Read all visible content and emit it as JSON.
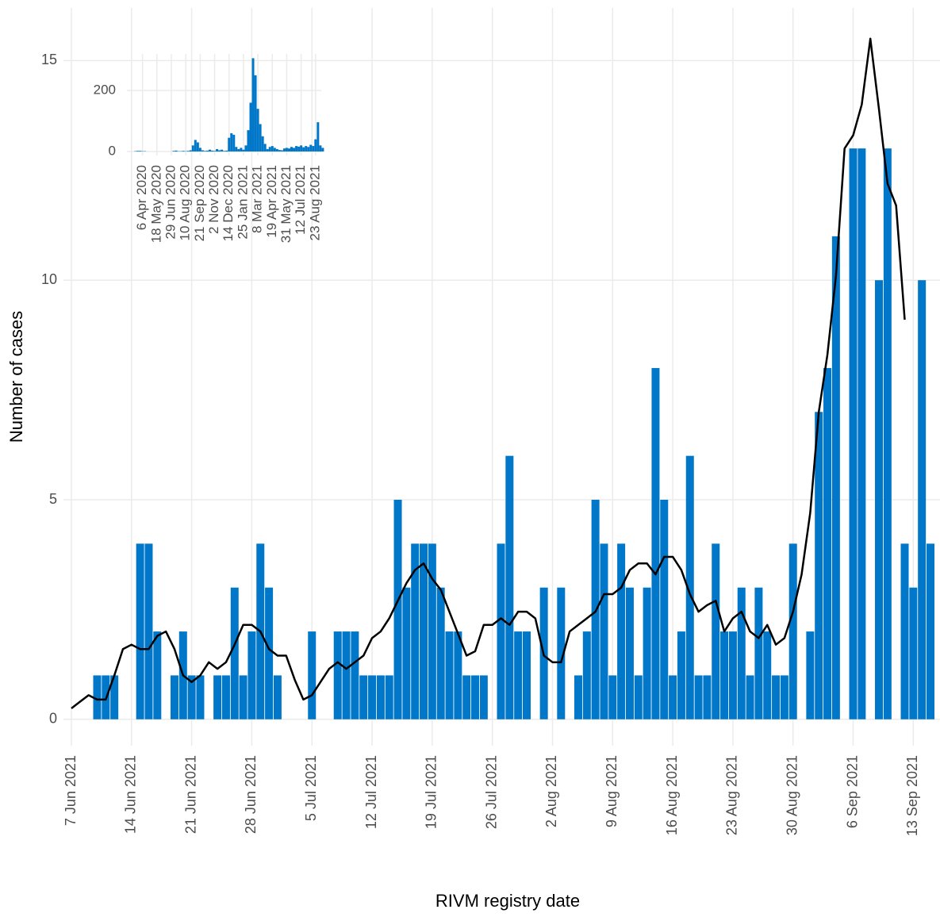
{
  "chart_data": [
    {
      "type": "bar",
      "x_label": "RIVM registry date",
      "y_label": "Number of cases",
      "categories": [
        "7 Jun 2021",
        null,
        null,
        null,
        null,
        null,
        null,
        "14 Jun 2021",
        null,
        null,
        null,
        null,
        null,
        null,
        "21 Jun 2021",
        null,
        null,
        null,
        null,
        null,
        null,
        "28 Jun 2021",
        null,
        null,
        null,
        null,
        null,
        null,
        "5 Jul 2021",
        null,
        null,
        null,
        null,
        null,
        null,
        "12 Jul 2021",
        null,
        null,
        null,
        null,
        null,
        null,
        "19 Jul 2021",
        null,
        null,
        null,
        null,
        null,
        null,
        "26 Jul 2021",
        null,
        null,
        null,
        null,
        null,
        null,
        "2 Aug 2021",
        null,
        null,
        null,
        null,
        null,
        null,
        "9 Aug 2021",
        null,
        null,
        null,
        null,
        null,
        null,
        "16 Aug 2021",
        null,
        null,
        null,
        null,
        null,
        null,
        "23 Aug 2021",
        null,
        null,
        null,
        null,
        null,
        null,
        "30 Aug 2021",
        null,
        null,
        null,
        null,
        null,
        null,
        "6 Sep 2021",
        null,
        null,
        null,
        null,
        null,
        null,
        "13 Sep 2021",
        null,
        null
      ],
      "series": [
        {
          "type": "bar",
          "color": "#0077c8",
          "values": [
            0,
            0,
            0,
            1,
            1,
            1,
            0,
            0,
            4,
            4,
            2,
            0,
            1,
            2,
            1,
            1,
            0,
            1,
            1,
            3,
            1,
            2,
            4,
            3,
            1,
            0,
            0,
            0,
            2,
            0,
            0,
            2,
            2,
            2,
            1,
            1,
            1,
            1,
            5,
            3,
            4,
            4,
            4,
            3,
            2,
            2,
            1,
            1,
            1,
            0,
            4,
            6,
            2,
            2,
            0,
            3,
            0,
            3,
            0,
            1,
            2,
            5,
            4,
            1,
            4,
            3,
            1,
            3,
            8,
            5,
            1,
            2,
            6,
            1,
            1,
            4,
            2,
            2,
            3,
            1,
            3,
            2,
            1,
            1,
            4,
            0,
            2,
            7,
            8,
            11,
            0,
            13,
            13,
            0,
            10,
            13,
            0,
            4,
            3,
            10,
            4
          ]
        },
        {
          "type": "line",
          "color": "#000000",
          "values": [
            0.25,
            0.4,
            0.55,
            0.45,
            0.45,
            1.0,
            1.6,
            1.7,
            1.6,
            1.6,
            1.9,
            2.0,
            1.6,
            1.0,
            0.85,
            1.0,
            1.3,
            1.15,
            1.3,
            1.7,
            2.15,
            2.15,
            2.0,
            1.6,
            1.45,
            1.45,
            0.9,
            0.45,
            0.55,
            0.85,
            1.15,
            1.3,
            1.15,
            1.3,
            1.45,
            1.85,
            2.0,
            2.3,
            2.7,
            3.1,
            3.4,
            3.55,
            3.2,
            2.95,
            2.45,
            1.95,
            1.45,
            1.55,
            2.15,
            2.15,
            2.3,
            2.15,
            2.45,
            2.45,
            2.3,
            1.45,
            1.3,
            1.3,
            2.0,
            2.15,
            2.3,
            2.45,
            2.85,
            2.85,
            3.0,
            3.4,
            3.55,
            3.55,
            3.3,
            3.7,
            3.7,
            3.4,
            2.85,
            2.45,
            2.6,
            2.7,
            2.0,
            2.3,
            2.45,
            2.0,
            1.85,
            2.15,
            1.7,
            1.85,
            2.45,
            3.3,
            4.7,
            7.0,
            8.3,
            10.1,
            13.0,
            13.3,
            14.0,
            15.5,
            13.9,
            12.2,
            11.7,
            9.1,
            null,
            null,
            null
          ]
        }
      ],
      "ylim": [
        -0.6,
        16.2
      ],
      "yticks": [
        0,
        5,
        10,
        15
      ],
      "grid": true
    },
    {
      "type": "bar",
      "categories": [
        null,
        null,
        null,
        null,
        null,
        "6 Apr 2020",
        null,
        null,
        null,
        null,
        null,
        "18 May 2020",
        null,
        null,
        null,
        null,
        null,
        "29 Jun 2020",
        null,
        null,
        null,
        null,
        null,
        "10 Aug 2020",
        null,
        null,
        null,
        null,
        null,
        "21 Sep 2020",
        null,
        null,
        null,
        null,
        null,
        "2 Nov 2020",
        null,
        null,
        null,
        null,
        null,
        "14 Dec 2020",
        null,
        null,
        null,
        null,
        null,
        "25 Jan 2021",
        null,
        null,
        null,
        null,
        null,
        "8 Mar 2021",
        null,
        null,
        null,
        null,
        null,
        "19 Apr 2021",
        null,
        null,
        null,
        null,
        null,
        "31 May 2021",
        null,
        null,
        null,
        null,
        null,
        "12 Jul 2021",
        null,
        null,
        null,
        null,
        null,
        "23 Aug 2021",
        null,
        null,
        null
      ],
      "series": [
        {
          "type": "bar",
          "color": "#0077c8",
          "values": [
            0,
            0,
            1,
            2,
            2,
            1,
            1,
            0,
            0,
            0,
            0,
            0,
            0,
            0,
            0,
            0,
            0,
            0,
            2,
            3,
            1,
            1,
            2,
            1,
            2,
            4,
            20,
            38,
            30,
            12,
            4,
            2,
            3,
            6,
            3,
            2,
            8,
            4,
            6,
            2,
            3,
            45,
            60,
            55,
            15,
            8,
            12,
            6,
            20,
            70,
            160,
            306,
            250,
            140,
            90,
            50,
            25,
            8,
            15,
            18,
            12,
            8,
            5,
            4,
            10,
            12,
            10,
            15,
            12,
            18,
            16,
            20,
            14,
            18,
            15,
            22,
            18,
            40,
            96,
            20,
            12
          ]
        }
      ],
      "ylim": [
        -13,
        320
      ],
      "yticks": [
        0,
        200
      ],
      "grid": true
    }
  ]
}
